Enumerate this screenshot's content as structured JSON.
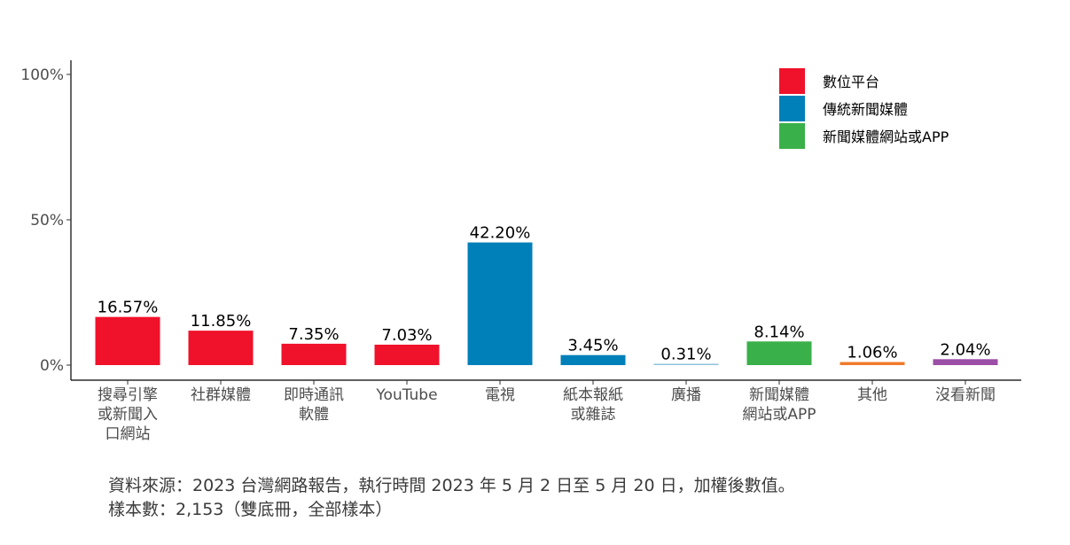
{
  "chart_data": {
    "type": "bar",
    "categories": [
      [
        "搜尋引擎",
        "或新聞入",
        "口網站"
      ],
      [
        "社群媒體"
      ],
      [
        "即時通訊",
        "軟體"
      ],
      [
        "YouTube"
      ],
      [
        "電視"
      ],
      [
        "紙本報紙",
        "或雜誌"
      ],
      [
        "廣播"
      ],
      [
        "新聞媒體",
        "網站或APP"
      ],
      [
        "其他"
      ],
      [
        "沒看新聞"
      ]
    ],
    "values": [
      16.57,
      11.85,
      7.35,
      7.03,
      42.2,
      3.45,
      0.31,
      8.14,
      1.06,
      2.04
    ],
    "value_labels": [
      "16.57%",
      "11.85%",
      "7.35%",
      "7.03%",
      "42.20%",
      "3.45%",
      "0.31%",
      "8.14%",
      "1.06%",
      "2.04%"
    ],
    "bar_colors": [
      "#f0112a",
      "#f0112a",
      "#f0112a",
      "#f0112a",
      "#0080b8",
      "#0080b8",
      "#8fc3dc",
      "#3ab04a",
      "#f07a2a",
      "#9b4fa6"
    ],
    "ylim": [
      0,
      100
    ],
    "yticks": [
      0,
      50,
      100
    ],
    "ytick_labels": [
      "0%",
      "50%",
      "100%"
    ],
    "legend": {
      "position": "top-right",
      "items": [
        {
          "label": "數位平台",
          "color": "#f0112a"
        },
        {
          "label": "傳統新聞媒體",
          "color": "#0080b8"
        },
        {
          "label": "新聞媒體網站或APP",
          "color": "#3ab04a"
        }
      ]
    },
    "grid": false
  },
  "source": {
    "line1": "資料來源：2023 台灣網路報告，執行時間 2023 年 5 月 2 日至 5 月 20 日，加權後數值。",
    "line2": "樣本數：2,153（雙底冊，全部樣本）"
  }
}
